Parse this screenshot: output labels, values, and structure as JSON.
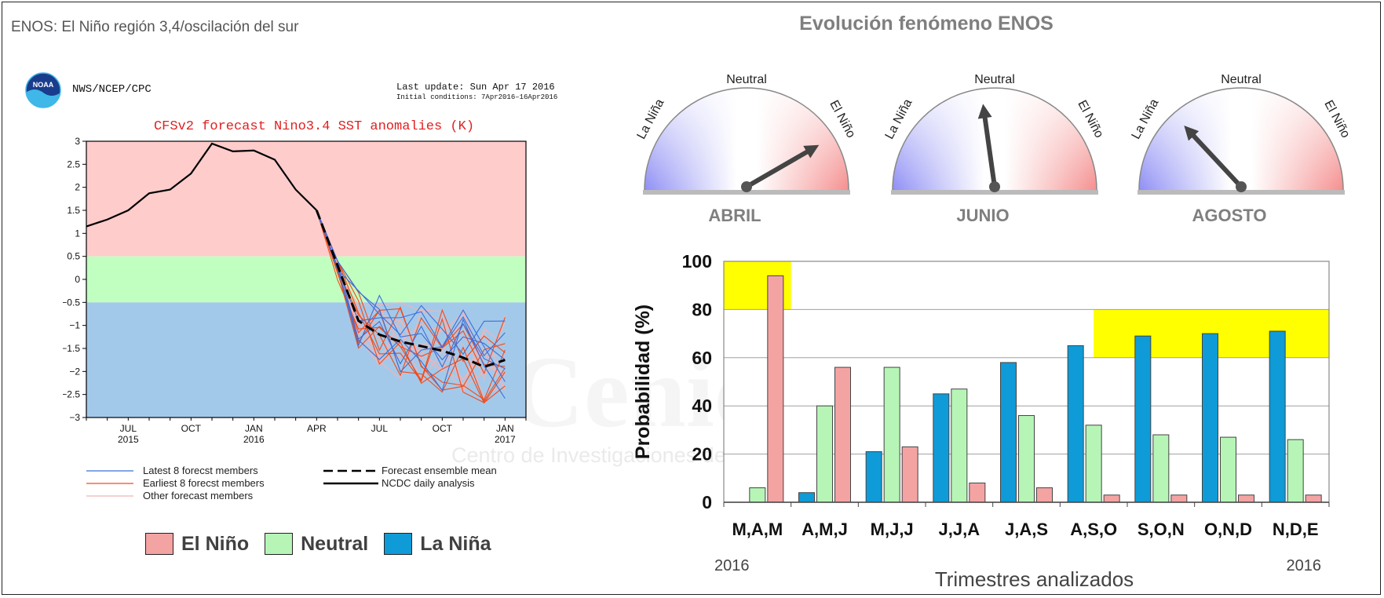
{
  "page": {
    "title": "ENOS: El Niño región 3,4/oscilación del sur",
    "watermark": "Cenicafé",
    "watermark_sub": "Centro de Investigaciones de Café"
  },
  "cfs_panel": {
    "agency": "NWS/NCEP/CPC",
    "logo_text": "NOAA",
    "last_update": "Last update: Sun Apr 17 2016",
    "initial_conditions": "Initial conditions: 7Apr2016–16Apr2016",
    "legend": {
      "latest": "Latest 8 forecst members",
      "earliest": "Earliest 8 forecst members",
      "other": "Other forecast members",
      "ensemble_mean": "Forecast ensemble mean",
      "ncdc": "NCDC daily analysis"
    }
  },
  "gauges": {
    "title": "Evolución fenómeno ENOS",
    "neutral_label": "Neutral",
    "lanina_label": "La Niña",
    "elnino_label": "El Niño",
    "items": [
      {
        "month": "ABRIL",
        "angle_deg": 30
      },
      {
        "month": "JUNIO",
        "angle_deg": 98
      },
      {
        "month": "AGOSTO",
        "angle_deg": 133
      }
    ]
  },
  "state_legend": [
    {
      "label": "El Niño",
      "color": "#f4a3a3"
    },
    {
      "label": "Neutral",
      "color": "#b6f5b6"
    },
    {
      "label": "La Niña",
      "color": "#0f9bd7"
    }
  ],
  "chart_data": [
    {
      "type": "line",
      "title": "CFSv2 forecast Nino3.4 SST anomalies (K)",
      "ylim": [
        -3,
        3
      ],
      "yticks": [
        "3",
        "2.5",
        "2",
        "1.5",
        "1",
        "0.5",
        "0",
        "−0.5",
        "−1",
        "−1.5",
        "−2",
        "−2.5",
        "−3"
      ],
      "xticks": [
        {
          "label": "JUL",
          "year": "2015",
          "x": 6
        },
        {
          "label": "OCT",
          "year": "",
          "x": 9
        },
        {
          "label": "JAN",
          "year": "2016",
          "x": 12
        },
        {
          "label": "APR",
          "year": "",
          "x": 15
        },
        {
          "label": "JUL",
          "year": "",
          "x": 18
        },
        {
          "label": "OCT",
          "year": "",
          "x": 21
        },
        {
          "label": "JAN",
          "year": "2017",
          "x": 24
        }
      ],
      "xlim": [
        4,
        25
      ],
      "bands": [
        {
          "name": "El Niño",
          "from": 0.5,
          "to": 3,
          "color": "#ffcccc"
        },
        {
          "name": "Neutral",
          "from": -0.5,
          "to": 0.5,
          "color": "#c1ffc1"
        },
        {
          "name": "La Niña",
          "from": -3,
          "to": -0.5,
          "color": "#a3c9ea"
        }
      ],
      "series": [
        {
          "name": "NCDC daily analysis",
          "x": [
            4,
            5,
            6,
            7,
            8,
            9,
            10,
            11,
            12,
            13,
            14,
            15
          ],
          "y": [
            1.15,
            1.3,
            1.5,
            1.87,
            1.95,
            2.3,
            2.95,
            2.78,
            2.8,
            2.6,
            1.95,
            1.5
          ]
        },
        {
          "name": "Forecast ensemble mean",
          "x": [
            15,
            16,
            17,
            18,
            19,
            20,
            21,
            22,
            23,
            24
          ],
          "y": [
            1.5,
            0.3,
            -0.9,
            -1.2,
            -1.35,
            -1.45,
            -1.55,
            -1.7,
            -1.9,
            -1.75
          ]
        }
      ]
    },
    {
      "type": "bar",
      "ylabel": "Probabilidad (%)",
      "xlabel": "Trimestres  analizados",
      "ylim": [
        0,
        100
      ],
      "yticks": [
        0,
        20,
        40,
        60,
        80,
        100
      ],
      "grid": true,
      "categories": [
        "M,A,M",
        "A,M,J",
        "M,J,J",
        "J,J,A",
        "J,A,S",
        "A,S,O",
        "S,O,N",
        "O,N,D",
        "N,D,E"
      ],
      "year_start": "2016",
      "year_end": "2016",
      "series": [
        {
          "name": "La Niña",
          "color": "#0f9bd7",
          "values": [
            0,
            4,
            21,
            45,
            58,
            65,
            69,
            70,
            71
          ]
        },
        {
          "name": "Neutral",
          "color": "#b6f5b6",
          "values": [
            6,
            40,
            56,
            47,
            36,
            32,
            28,
            27,
            26
          ]
        },
        {
          "name": "El Niño",
          "color": "#f4a3a3",
          "values": [
            94,
            56,
            23,
            8,
            6,
            3,
            3,
            3,
            3
          ]
        }
      ],
      "highlights": [
        {
          "from_category": 0,
          "to_category": 0,
          "y0": 80,
          "y1": 100,
          "color": "#ffff00"
        },
        {
          "from_category": 5.5,
          "to_category": 8,
          "y0": 60,
          "y1": 80,
          "color": "#ffff00"
        }
      ]
    }
  ]
}
